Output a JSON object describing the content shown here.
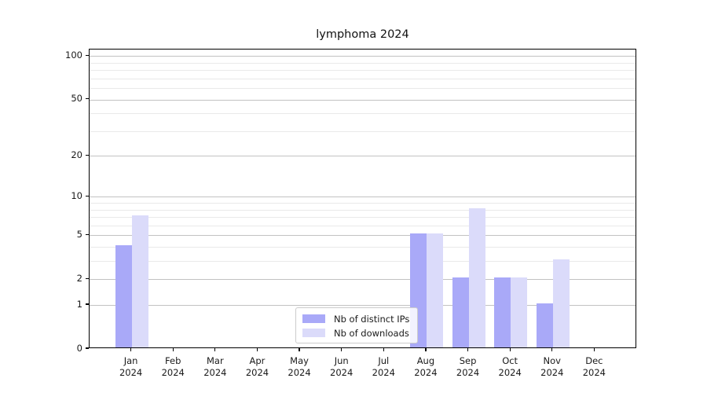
{
  "chart_data": {
    "type": "bar",
    "title": "lymphoma 2024",
    "categories": [
      "Jan",
      "Feb",
      "Mar",
      "Apr",
      "May",
      "Jun",
      "Jul",
      "Aug",
      "Sep",
      "Oct",
      "Nov",
      "Dec"
    ],
    "category_year": "2024",
    "series": [
      {
        "name": "Nb of distinct IPs",
        "color": "#a9a9f8",
        "values": [
          4,
          0,
          0,
          0,
          0,
          0,
          0,
          5,
          2,
          2,
          1,
          0
        ]
      },
      {
        "name": "Nb of downloads",
        "color": "#dbdbfa",
        "values": [
          7,
          0,
          0,
          0,
          0,
          0,
          0,
          5,
          8,
          2,
          3,
          0
        ]
      }
    ],
    "yscale": "log1p",
    "ylim": [
      0,
      111
    ],
    "yticks": [
      0,
      1,
      2,
      5,
      10,
      20,
      50,
      100
    ],
    "minor_yticks": [
      3,
      4,
      6,
      7,
      8,
      9,
      30,
      40,
      60,
      70,
      80,
      90
    ],
    "grid": "on",
    "legend_position": "bottom-center",
    "colors": {
      "major_grid": "#c2c2c2",
      "minor_grid": "#e9e9e9",
      "axis_frame": "#000000",
      "text": "#1a1a1a",
      "background": "#ffffff"
    }
  }
}
